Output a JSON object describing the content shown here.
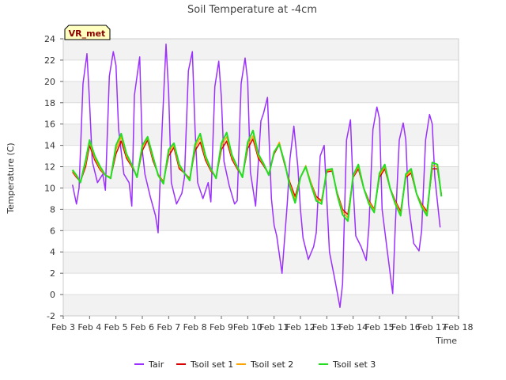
{
  "chart_data": {
    "type": "line",
    "title": "Soil Temperature at -4cm",
    "xlabel": "Time",
    "ylabel": "Temperature (C)",
    "ylim": [
      -2,
      24
    ],
    "yticks": [
      -2,
      0,
      2,
      4,
      6,
      8,
      10,
      12,
      14,
      16,
      18,
      20,
      22,
      24
    ],
    "xlim": [
      3,
      18
    ],
    "xticks": [
      3,
      4,
      5,
      6,
      7,
      8,
      9,
      10,
      11,
      12,
      13,
      14,
      15,
      16,
      17,
      18
    ],
    "xtick_labels": [
      "Feb 3",
      "Feb 4",
      "Feb 5",
      "Feb 6",
      "Feb 7",
      "Feb 8",
      "Feb 9",
      "Feb 10",
      "Feb 11",
      "Feb 12",
      "Feb 13",
      "Feb 14",
      "Feb 15",
      "Feb 16",
      "Feb 17",
      "Feb 18"
    ],
    "grid": "horizontal banded",
    "legend_position": "bottom",
    "station_label": "VR_met",
    "series": [
      {
        "name": "Tair",
        "color": "#9b30ff",
        "x": [
          3.35,
          3.5,
          3.6,
          3.75,
          3.9,
          4.0,
          4.1,
          4.3,
          4.5,
          4.6,
          4.75,
          4.9,
          5.0,
          5.1,
          5.3,
          5.5,
          5.6,
          5.7,
          5.9,
          6.0,
          6.1,
          6.3,
          6.5,
          6.6,
          6.75,
          6.9,
          7.0,
          7.1,
          7.3,
          7.5,
          7.6,
          7.75,
          7.9,
          8.0,
          8.1,
          8.3,
          8.5,
          8.6,
          8.75,
          8.9,
          9.0,
          9.1,
          9.3,
          9.5,
          9.6,
          9.75,
          9.9,
          10.0,
          10.1,
          10.3,
          10.5,
          10.6,
          10.75,
          10.9,
          11.0,
          11.1,
          11.3,
          11.5,
          11.6,
          11.75,
          11.9,
          12.0,
          12.1,
          12.3,
          12.5,
          12.6,
          12.75,
          12.9,
          13.0,
          13.1,
          13.3,
          13.5,
          13.6,
          13.75,
          13.9,
          14.0,
          14.1,
          14.3,
          14.5,
          14.6,
          14.75,
          14.9,
          15.0,
          15.1,
          15.3,
          15.5,
          15.6,
          15.75,
          15.9,
          16.0,
          16.1,
          16.3,
          16.5,
          16.6,
          16.75,
          16.9,
          17.0,
          17.1,
          17.3
        ],
        "y": [
          10.3,
          8.5,
          10.0,
          19.8,
          22.6,
          18.0,
          12.5,
          10.5,
          11.3,
          9.8,
          20.5,
          22.8,
          21.5,
          15.5,
          11.3,
          10.5,
          8.3,
          18.7,
          22.3,
          13.5,
          11.3,
          9.2,
          7.4,
          5.8,
          15.5,
          23.5,
          19.0,
          10.5,
          8.5,
          9.5,
          11.0,
          21.0,
          22.8,
          15.5,
          10.5,
          9.0,
          10.5,
          8.7,
          19.5,
          21.9,
          18.5,
          12.5,
          10.2,
          8.5,
          8.8,
          19.8,
          22.2,
          20.0,
          11.5,
          8.3,
          16.3,
          17.0,
          18.5,
          9.0,
          6.5,
          5.5,
          2.0,
          8.5,
          12.7,
          15.8,
          12.0,
          8.0,
          5.3,
          3.3,
          4.5,
          5.8,
          13.0,
          14.0,
          9.0,
          4.0,
          1.5,
          -1.2,
          1.0,
          14.5,
          16.4,
          10.0,
          5.5,
          4.5,
          3.2,
          6.5,
          15.5,
          17.6,
          16.5,
          8.0,
          4.0,
          0.1,
          6.5,
          14.5,
          16.1,
          14.5,
          8.5,
          4.8,
          4.1,
          6.0,
          14.5,
          16.9,
          16.0,
          11.0,
          6.3
        ]
      },
      {
        "name": "Tsoil set 1",
        "color": "#dd0000",
        "x": [
          3.35,
          3.5,
          3.65,
          3.85,
          4.0,
          4.2,
          4.4,
          4.6,
          4.8,
          5.0,
          5.2,
          5.4,
          5.6,
          5.8,
          6.0,
          6.2,
          6.4,
          6.6,
          6.8,
          7.0,
          7.2,
          7.4,
          7.6,
          7.8,
          8.0,
          8.2,
          8.4,
          8.6,
          8.8,
          9.0,
          9.2,
          9.4,
          9.6,
          9.8,
          10.0,
          10.2,
          10.4,
          10.6,
          10.8,
          11.0,
          11.2,
          11.4,
          11.6,
          11.8,
          12.0,
          12.2,
          12.4,
          12.6,
          12.8,
          13.0,
          13.2,
          13.4,
          13.6,
          13.8,
          14.0,
          14.2,
          14.4,
          14.6,
          14.8,
          15.0,
          15.2,
          15.4,
          15.6,
          15.8,
          16.0,
          16.2,
          16.4,
          16.6,
          16.8,
          17.0,
          17.2,
          17.35
        ],
        "y": [
          11.5,
          11.0,
          10.6,
          12.0,
          14.0,
          12.6,
          11.7,
          11.2,
          11.0,
          13.2,
          14.4,
          12.8,
          12.0,
          11.1,
          13.5,
          14.5,
          12.6,
          11.3,
          10.6,
          13.0,
          13.8,
          11.8,
          11.4,
          10.9,
          13.5,
          14.3,
          12.6,
          11.6,
          11.0,
          13.6,
          14.4,
          12.7,
          11.8,
          11.1,
          13.7,
          14.6,
          12.8,
          12.1,
          11.3,
          13.2,
          14.1,
          12.2,
          10.5,
          9.2,
          11.0,
          12.0,
          10.5,
          9.2,
          8.8,
          11.5,
          11.6,
          9.5,
          8.0,
          7.5,
          11.0,
          11.8,
          10.0,
          8.8,
          8.0,
          11.0,
          11.8,
          10.0,
          8.8,
          7.8,
          11.0,
          11.4,
          9.5,
          8.5,
          7.8,
          11.8,
          11.8,
          9.4
        ]
      },
      {
        "name": "Tsoil set 2",
        "color": "#ffa500",
        "x": [
          3.35,
          3.5,
          3.65,
          3.85,
          4.0,
          4.2,
          4.4,
          4.6,
          4.8,
          5.0,
          5.2,
          5.4,
          5.6,
          5.8,
          6.0,
          6.2,
          6.4,
          6.6,
          6.8,
          7.0,
          7.2,
          7.4,
          7.6,
          7.8,
          8.0,
          8.2,
          8.4,
          8.6,
          8.8,
          9.0,
          9.2,
          9.4,
          9.6,
          9.8,
          10.0,
          10.2,
          10.4,
          10.6,
          10.8,
          11.0,
          11.2,
          11.4,
          11.6,
          11.8,
          12.0,
          12.2,
          12.4,
          12.6,
          12.8,
          13.0,
          13.2,
          13.4,
          13.6,
          13.8,
          14.0,
          14.2,
          14.4,
          14.6,
          14.8,
          15.0,
          15.2,
          15.4,
          15.6,
          15.8,
          16.0,
          16.2,
          16.4,
          16.6,
          16.8,
          17.0,
          17.2,
          17.35
        ],
        "y": [
          11.6,
          11.1,
          10.6,
          12.3,
          14.3,
          12.8,
          11.8,
          11.2,
          11.0,
          13.6,
          14.8,
          13.0,
          12.1,
          11.1,
          13.8,
          14.7,
          12.8,
          11.3,
          10.5,
          13.3,
          14.0,
          12.0,
          11.4,
          10.8,
          13.8,
          14.7,
          12.8,
          11.7,
          11.0,
          13.9,
          14.8,
          12.9,
          11.9,
          11.1,
          14.0,
          14.9,
          13.0,
          12.2,
          11.3,
          13.3,
          14.3,
          12.3,
          10.3,
          8.9,
          11.0,
          12.1,
          10.5,
          9.0,
          8.7,
          11.6,
          11.7,
          9.4,
          7.8,
          7.2,
          11.1,
          12.0,
          10.0,
          8.7,
          7.9,
          11.2,
          12.0,
          10.0,
          8.7,
          7.6,
          11.1,
          11.6,
          9.5,
          8.4,
          7.6,
          12.1,
          12.0,
          9.3
        ]
      },
      {
        "name": "Tsoil set 3",
        "color": "#22dd22",
        "x": [
          3.35,
          3.5,
          3.65,
          3.85,
          4.0,
          4.2,
          4.4,
          4.6,
          4.8,
          5.0,
          5.2,
          5.4,
          5.6,
          5.8,
          6.0,
          6.2,
          6.4,
          6.6,
          6.8,
          7.0,
          7.2,
          7.4,
          7.6,
          7.8,
          8.0,
          8.2,
          8.4,
          8.6,
          8.8,
          9.0,
          9.2,
          9.4,
          9.6,
          9.8,
          10.0,
          10.2,
          10.4,
          10.6,
          10.8,
          11.0,
          11.2,
          11.4,
          11.6,
          11.8,
          12.0,
          12.2,
          12.4,
          12.6,
          12.8,
          13.0,
          13.2,
          13.4,
          13.6,
          13.8,
          14.0,
          14.2,
          14.4,
          14.6,
          14.8,
          15.0,
          15.2,
          15.4,
          15.6,
          15.8,
          16.0,
          16.2,
          16.4,
          16.6,
          16.8,
          17.0,
          17.2,
          17.35
        ],
        "y": [
          11.7,
          11.2,
          10.5,
          12.6,
          14.5,
          13.0,
          12.0,
          11.2,
          10.9,
          14.0,
          15.1,
          13.2,
          12.2,
          11.0,
          14.0,
          14.8,
          13.0,
          11.2,
          10.4,
          13.6,
          14.2,
          12.2,
          11.4,
          10.7,
          14.1,
          15.1,
          13.0,
          11.8,
          10.9,
          14.2,
          15.2,
          13.1,
          12.0,
          11.0,
          14.3,
          15.4,
          13.2,
          12.3,
          11.2,
          13.4,
          14.1,
          12.4,
          10.1,
          8.6,
          11.0,
          12.0,
          10.3,
          8.8,
          8.5,
          11.7,
          11.8,
          9.3,
          7.5,
          6.9,
          11.2,
          12.2,
          10.0,
          8.5,
          7.7,
          11.4,
          12.2,
          10.0,
          8.5,
          7.4,
          11.3,
          11.8,
          9.5,
          8.2,
          7.4,
          12.4,
          12.2,
          9.2
        ]
      }
    ]
  }
}
